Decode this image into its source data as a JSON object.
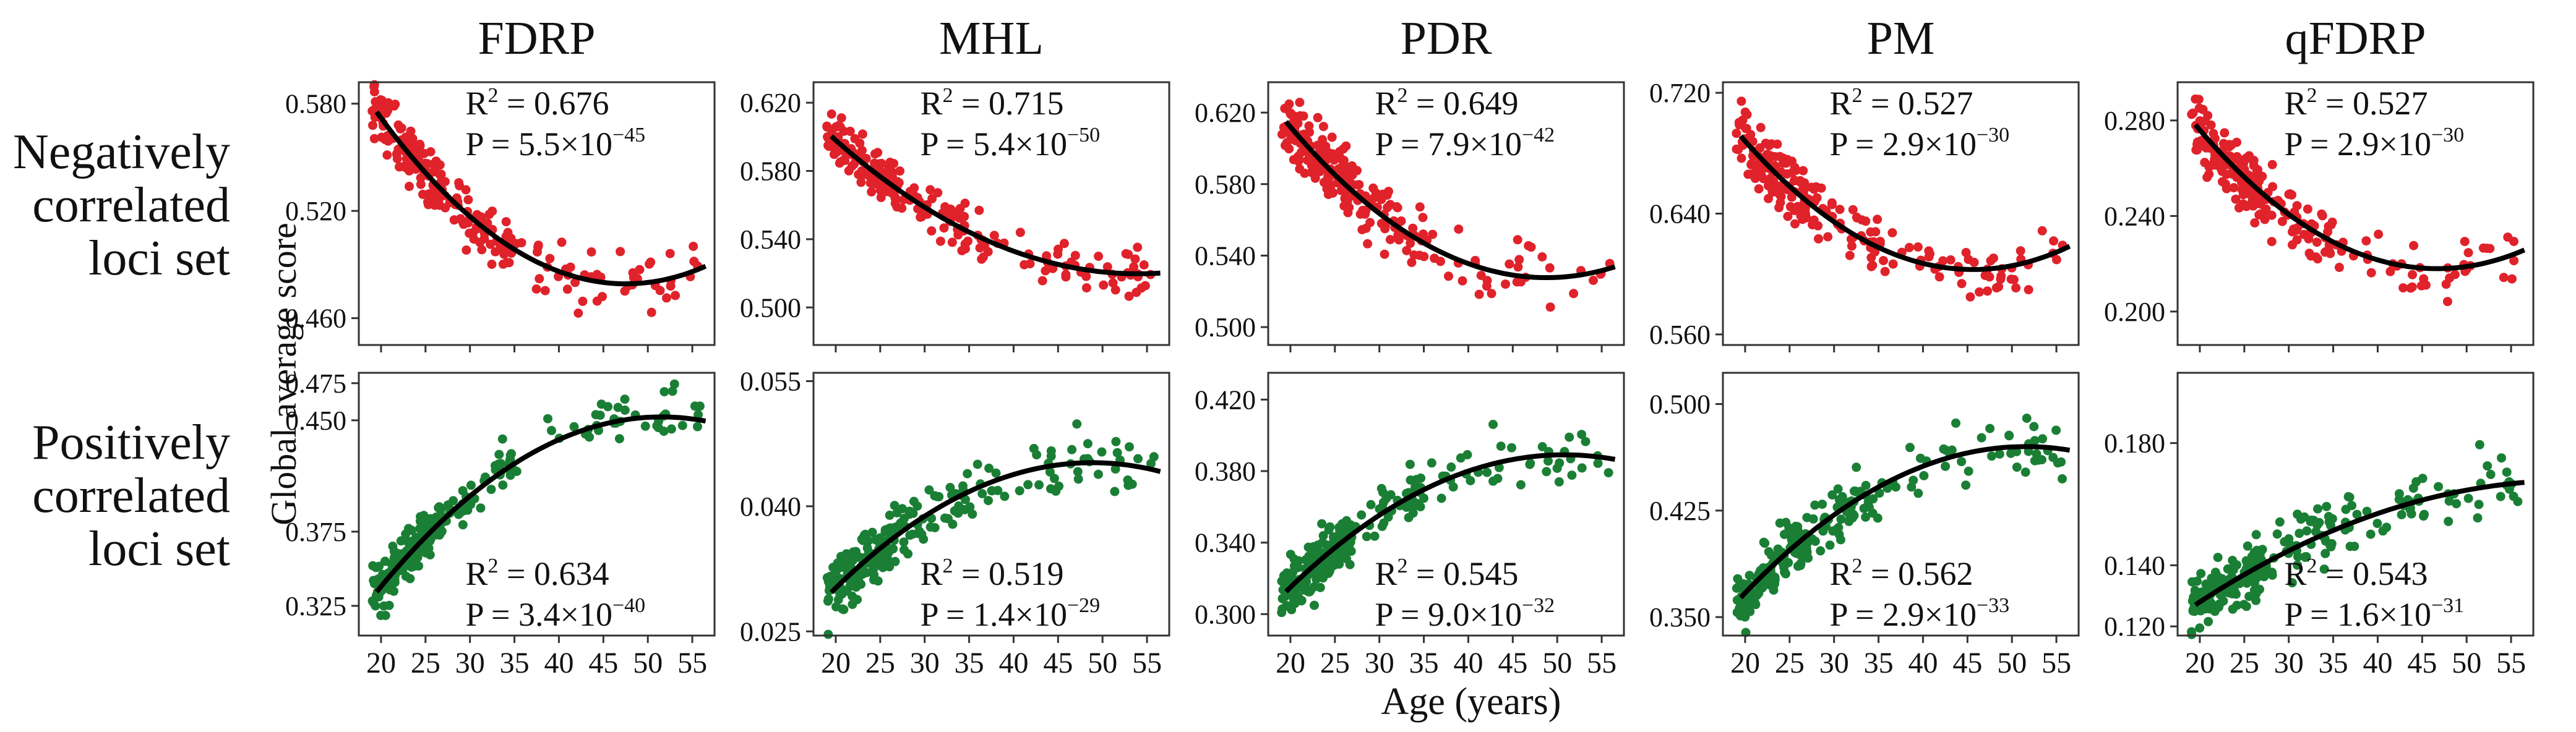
{
  "figure": {
    "y_axis_label": "Global average score",
    "x_axis_label": "Age (years)",
    "row_labels": [
      [
        "Negatively",
        "correlated",
        "loci set"
      ],
      [
        "Positively",
        "correlated",
        "loci set"
      ]
    ],
    "colors": {
      "negative": "#e0222b",
      "positive": "#1a7f35",
      "fit": "#000000"
    }
  },
  "chart_data": [
    {
      "type": "scatter",
      "title": "FDRP",
      "row": "Negatively correlated loci set",
      "xlabel": "Age (years)",
      "ylabel": "Global average score",
      "xlim": [
        17.5,
        57.5
      ],
      "xticks": [
        20,
        25,
        30,
        35,
        40,
        45,
        50,
        55
      ],
      "ylim": [
        0.445,
        0.592
      ],
      "yticks": [
        0.46,
        0.52,
        0.58
      ],
      "ytick_labels": [
        "0.460",
        "0.520",
        "0.580"
      ],
      "fit": [
        0.572,
        0.4795,
        0.488
      ],
      "fit_min_age": 46,
      "spread": 0.016,
      "r2_label": "0.676",
      "p_label": "5.5×10",
      "p_exp": "−45",
      "stats_position": "top"
    },
    {
      "type": "scatter",
      "title": "MHL",
      "row": "Negatively correlated loci set",
      "xlabel": "Age (years)",
      "ylabel": "Global average score",
      "xlim": [
        17.5,
        57.5
      ],
      "xticks": [
        20,
        25,
        30,
        35,
        40,
        45,
        50,
        55
      ],
      "ylim": [
        0.478,
        0.632
      ],
      "yticks": [
        0.5,
        0.54,
        0.58,
        0.62
      ],
      "ytick_labels": [
        "0.500",
        "0.540",
        "0.580",
        "0.620"
      ],
      "fit": [
        0.598,
        0.52,
        0.52
      ],
      "fit_min_age": 52,
      "spread": 0.015,
      "r2_label": "0.715",
      "p_label": "5.4×10",
      "p_exp": "−50",
      "stats_position": "top"
    },
    {
      "type": "scatter",
      "title": "PDR",
      "row": "Negatively correlated loci set",
      "xlabel": "Age (years)",
      "ylabel": "Global average score",
      "xlim": [
        17.5,
        57.5
      ],
      "xticks": [
        20,
        25,
        30,
        35,
        40,
        45,
        50,
        55
      ],
      "ylim": [
        0.49,
        0.637
      ],
      "yticks": [
        0.5,
        0.54,
        0.58,
        0.62
      ],
      "ytick_labels": [
        "0.500",
        "0.540",
        "0.580",
        "0.620"
      ],
      "fit": [
        0.612,
        0.528,
        0.533
      ],
      "fit_min_age": 47,
      "spread": 0.018,
      "r2_label": "0.649",
      "p_label": "7.9×10",
      "p_exp": "−42",
      "stats_position": "top"
    },
    {
      "type": "scatter",
      "title": "PM",
      "row": "Negatively correlated loci set",
      "xlabel": "Age (years)",
      "ylabel": "Global average score",
      "xlim": [
        17.5,
        57.5
      ],
      "xticks": [
        20,
        25,
        30,
        35,
        40,
        45,
        50,
        55
      ],
      "ylim": [
        0.553,
        0.727
      ],
      "yticks": [
        0.56,
        0.64,
        0.72
      ],
      "ytick_labels": [
        "0.560",
        "0.640",
        "0.720"
      ],
      "fit": [
        0.688,
        0.603,
        0.617
      ],
      "fit_min_age": 46,
      "spread": 0.022,
      "r2_label": "0.527",
      "p_label": "2.9×10",
      "p_exp": "−30",
      "stats_position": "top"
    },
    {
      "type": "scatter",
      "title": "qFDRP",
      "row": "Negatively correlated loci set",
      "xlabel": "Age (years)",
      "ylabel": "Global average score",
      "xlim": [
        17.5,
        57.5
      ],
      "xticks": [
        20,
        25,
        30,
        35,
        40,
        45,
        50,
        55
      ],
      "ylim": [
        0.186,
        0.296
      ],
      "yticks": [
        0.2,
        0.24,
        0.28
      ],
      "ytick_labels": [
        "0.200",
        "0.240",
        "0.280"
      ],
      "fit": [
        0.276,
        0.218,
        0.225
      ],
      "fit_min_age": 46,
      "spread": 0.013,
      "r2_label": "0.527",
      "p_label": "2.9×10",
      "p_exp": "−30",
      "stats_position": "top"
    },
    {
      "type": "scatter",
      "title": "FDRP",
      "row": "Positively correlated loci set",
      "xlabel": "Age (years)",
      "ylabel": "Global average score",
      "xlim": [
        17.5,
        57.5
      ],
      "xticks": [
        20,
        25,
        30,
        35,
        40,
        45,
        50,
        55
      ],
      "ylim": [
        0.305,
        0.482
      ],
      "yticks": [
        0.325,
        0.375,
        0.45,
        0.475
      ],
      "ytick_labels": [
        "0.325",
        "0.375",
        "0.450",
        "0.475"
      ],
      "fit": [
        0.338,
        0.452,
        0.45
      ],
      "fit_min_age": 50,
      "spread": 0.018,
      "r2_label": "0.634",
      "p_label": "3.4×10",
      "p_exp": "−40",
      "stats_position": "bottom"
    },
    {
      "type": "scatter",
      "title": "MHL",
      "row": "Positively correlated loci set",
      "xlabel": "Age (years)",
      "ylabel": "Global average score",
      "xlim": [
        17.5,
        57.5
      ],
      "xticks": [
        20,
        25,
        30,
        35,
        40,
        45,
        50,
        55
      ],
      "ylim": [
        0.0245,
        0.056
      ],
      "yticks": [
        0.025,
        0.04,
        0.055
      ],
      "ytick_labels": [
        "0.025",
        "0.040",
        "0.055"
      ],
      "fit": [
        0.0302,
        0.0452,
        0.0443
      ],
      "fit_min_age": 50,
      "spread": 0.0035,
      "r2_label": "0.519",
      "p_label": "1.4×10",
      "p_exp": "−29",
      "stats_position": "bottom"
    },
    {
      "type": "scatter",
      "title": "PDR",
      "row": "Positively correlated loci set",
      "xlabel": "Age (years)",
      "ylabel": "Global average score",
      "xlim": [
        17.5,
        57.5
      ],
      "xticks": [
        20,
        25,
        30,
        35,
        40,
        45,
        50,
        55
      ],
      "ylim": [
        0.288,
        0.435
      ],
      "yticks": [
        0.3,
        0.34,
        0.38,
        0.42
      ],
      "ytick_labels": [
        "0.300",
        "0.340",
        "0.380",
        "0.420"
      ],
      "fit": [
        0.315,
        0.389,
        0.387
      ],
      "fit_min_age": 52,
      "spread": 0.017,
      "r2_label": "0.545",
      "p_label": "9.0×10",
      "p_exp": "−32",
      "stats_position": "bottom"
    },
    {
      "type": "scatter",
      "title": "PM",
      "row": "Positively correlated loci set",
      "xlabel": "Age (years)",
      "ylabel": "Global average score",
      "xlim": [
        17.5,
        57.5
      ],
      "xticks": [
        20,
        25,
        30,
        35,
        40,
        45,
        50,
        55
      ],
      "ylim": [
        0.337,
        0.522
      ],
      "yticks": [
        0.35,
        0.425,
        0.5
      ],
      "ytick_labels": [
        "0.350",
        "0.425",
        "0.500"
      ],
      "fit": [
        0.367,
        0.47,
        0.468
      ],
      "fit_min_age": 51,
      "spread": 0.022,
      "r2_label": "0.562",
      "p_label": "2.9×10",
      "p_exp": "−33",
      "stats_position": "bottom"
    },
    {
      "type": "scatter",
      "title": "qFDRP",
      "row": "Positively correlated loci set",
      "xlabel": "Age (years)",
      "ylabel": "Global average score",
      "xlim": [
        17.5,
        57.5
      ],
      "xticks": [
        20,
        25,
        30,
        35,
        40,
        45,
        50,
        55
      ],
      "ylim": [
        0.117,
        0.203
      ],
      "yticks": [
        0.12,
        0.14,
        0.18
      ],
      "ytick_labels": [
        "0.120",
        "0.140",
        "0.180"
      ],
      "fit": [
        0.128,
        0.166,
        0.167
      ],
      "fit_min_age": 53,
      "spread": 0.01,
      "r2_label": "0.543",
      "p_label": "1.6×10",
      "p_exp": "−31",
      "stats_position": "bottom"
    }
  ]
}
